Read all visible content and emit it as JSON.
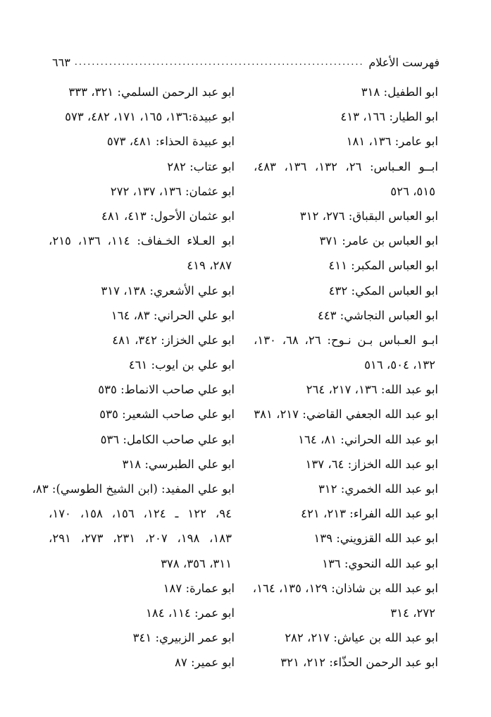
{
  "header": {
    "title": "فهرست الأعلام",
    "page_number": "٦٦٣"
  },
  "right_column": [
    [
      "ابو الطفيل: ٣١٨"
    ],
    [
      "ابو الطيار: ١٦٦، ٤١٣"
    ],
    [
      "ابو عامر: ١٣٦، ١٨١"
    ],
    [
      "ابــو العـباس: ٢٦، ١٣٢، ١٣٦، ٤٨٣،",
      "٥١٥، ٥٢٦"
    ],
    [
      "ابو العباس البقباق: ٢٧٦، ٣١٢"
    ],
    [
      "ابو العباس بن عامر: ٣٧١"
    ],
    [
      "ابو العباس المكبر: ٤١١"
    ],
    [
      "ابو العباس المكي: ٤٣٢"
    ],
    [
      "ابو العباس النجاشي: ٤٤٣"
    ],
    [
      "ابـو العـباس بـن نـوح: ٢٦، ٦٨، ١٣٠،",
      "١٣٢، ٥٠٤، ٥١٦"
    ],
    [
      "ابو عبد الله: ١٣٦، ٢١٧، ٢٦٤"
    ],
    [
      "ابو عبد الله الجعفي القاضي: ٢١٧، ٣٨١"
    ],
    [
      "ابو عبد الله الحراني: ٨١، ١٦٤"
    ],
    [
      "ابو عبد الله الخزاز: ٦٤، ١٣٧"
    ],
    [
      "ابو عبد الله الخمري: ٣١٢"
    ],
    [
      "ابو عبد الله الفراء: ٢١٣، ٤٢١"
    ],
    [
      "ابو عبد الله القزويني: ١٣٩"
    ],
    [
      "ابو عبد الله النحوي: ١٣٦"
    ],
    [
      "ابو عبد الله بن شاذان: ١٢٩، ١٣٥، ١٦٤،",
      "٢٧٢، ٣١٤"
    ],
    [
      "ابو عبد الله بن عياش: ٢١٧، ٢٨٢"
    ],
    [
      "ابو عبد الرحمن الحذّاء: ٢١٢، ٣٢١"
    ]
  ],
  "left_column": [
    [
      "ابو عبد الرحمن السلمي: ٣٢١، ٣٣٣"
    ],
    [
      "ابو عبيدة:١٣٦، ١٦٥، ١٧١، ٤٨٢، ٥٧٣"
    ],
    [
      "ابو عبيدة الحذاء: ٤٨١، ٥٧٣"
    ],
    [
      "ابو عتاب: ٢٨٢"
    ],
    [
      "ابو عثمان: ١٣٦، ١٣٧، ٢٧٢"
    ],
    [
      "ابو عثمان الأحول: ٤١٣، ٤٨١"
    ],
    [
      "ابو العـلاء الخـفاف: ١١٤، ١٣٦، ٢١٥،",
      "٢٨٧، ٤١٩"
    ],
    [
      "ابو علي الأشعري: ١٣٨، ٣١٧"
    ],
    [
      "ابو علي الحراني: ٨٣، ١٦٤"
    ],
    [
      "ابو علي الخزاز: ٣٤٢، ٤٨١"
    ],
    [
      "ابو علي بن ايوب: ٤٦١"
    ],
    [
      "ابو علي صاحب الانماط: ٥٣٥"
    ],
    [
      "ابو علي صاحب الشعير: ٥٣٥"
    ],
    [
      "ابو علي صاحب الكامل: ٥٣٦"
    ],
    [
      "ابو علي الطبرسي: ٣١٨"
    ],
    [
      "ابو علي المفيد: (ابن الشيخ الطوسي): ٨٣،",
      "٩٤، ١٢٢ ـ ١٢٤، ١٥٦، ١٥٨، ١٧٠،",
      "١٨٣، ١٩٨، ٢٠٧، ٢٣١، ٢٧٣، ٢٩١،",
      "٣١١، ٣٥٦، ٣٧٨"
    ],
    [
      "ابو عمارة: ١٨٧"
    ],
    [
      "ابو عمر: ١١٤، ١٨٤"
    ],
    [
      "ابو عمر الزبيري: ٣٤١"
    ],
    [
      "ابو عمير: ٨٧"
    ]
  ]
}
